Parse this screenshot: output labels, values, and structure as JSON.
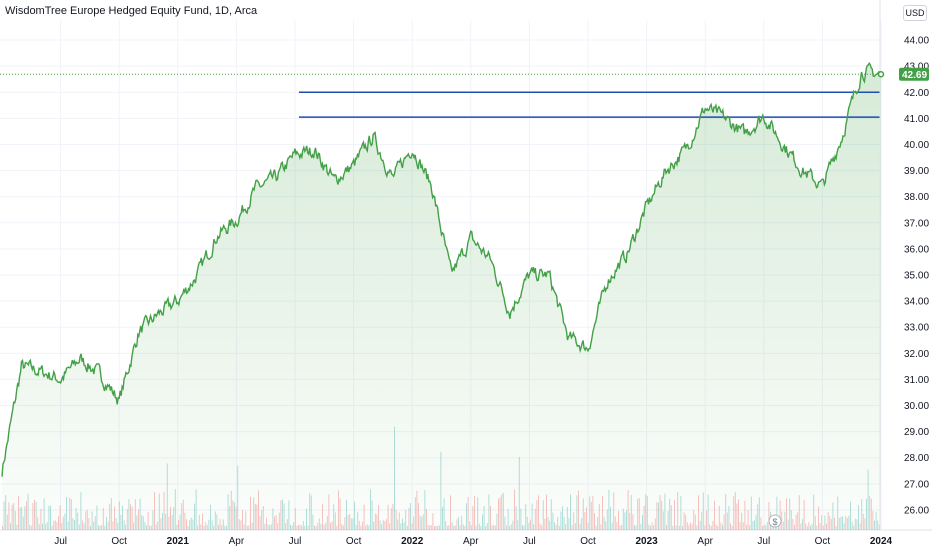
{
  "chart_data": {
    "type": "line",
    "title": "WisdomTree Europe Hedged Equity Fund, 1D, Arca",
    "currency": "USD",
    "last_price": "42.69",
    "line_color": "#43a047",
    "level_color": "#1f4db0",
    "ylim": [
      25.5,
      44.5
    ],
    "y_ticks": [
      "26.00",
      "27.00",
      "28.00",
      "29.00",
      "30.00",
      "31.00",
      "32.00",
      "33.00",
      "34.00",
      "35.00",
      "36.00",
      "37.00",
      "38.00",
      "39.00",
      "40.00",
      "41.00",
      "42.00",
      "43.00",
      "44.00"
    ],
    "x_ticks": [
      "Jul",
      "Oct",
      "2021",
      "Apr",
      "Jul",
      "Oct",
      "2022",
      "Apr",
      "Jul",
      "Oct",
      "2023",
      "Apr",
      "Jul",
      "Oct",
      "2024"
    ],
    "horizontal_levels": [
      42.0,
      41.05
    ],
    "x": [
      "2020-04",
      "2020-05",
      "2020-06",
      "2020-07",
      "2020-08",
      "2020-09",
      "2020-10",
      "2020-11",
      "2020-12",
      "2021-01",
      "2021-02",
      "2021-03",
      "2021-04",
      "2021-05",
      "2021-06",
      "2021-07",
      "2021-08",
      "2021-09",
      "2021-10",
      "2021-11",
      "2021-12",
      "2022-01",
      "2022-02",
      "2022-03",
      "2022-04",
      "2022-05",
      "2022-06",
      "2022-07",
      "2022-08",
      "2022-09",
      "2022-10",
      "2022-11",
      "2022-12",
      "2023-01",
      "2023-02",
      "2023-03",
      "2023-04",
      "2023-05",
      "2023-06",
      "2023-07",
      "2023-08",
      "2023-09",
      "2023-10",
      "2023-11",
      "2023-12",
      "2024-01"
    ],
    "series": [
      {
        "values": [
          27.5,
          31.5,
          31.3,
          31.0,
          31.8,
          31.2,
          30.2,
          32.8,
          33.5,
          34.0,
          35.0,
          36.5,
          37.1,
          38.3,
          38.7,
          39.6,
          39.8,
          38.6,
          39.2,
          40.3,
          38.7,
          39.9,
          38.4,
          35.0,
          36.4,
          35.6,
          33.6,
          35.0,
          35.0,
          32.6,
          32.2,
          34.8,
          35.8,
          37.6,
          39.0,
          39.8,
          41.4,
          41.0,
          40.4,
          41.1,
          40.0,
          39.0,
          38.4,
          40.3,
          42.8,
          42.69
        ]
      }
    ]
  }
}
